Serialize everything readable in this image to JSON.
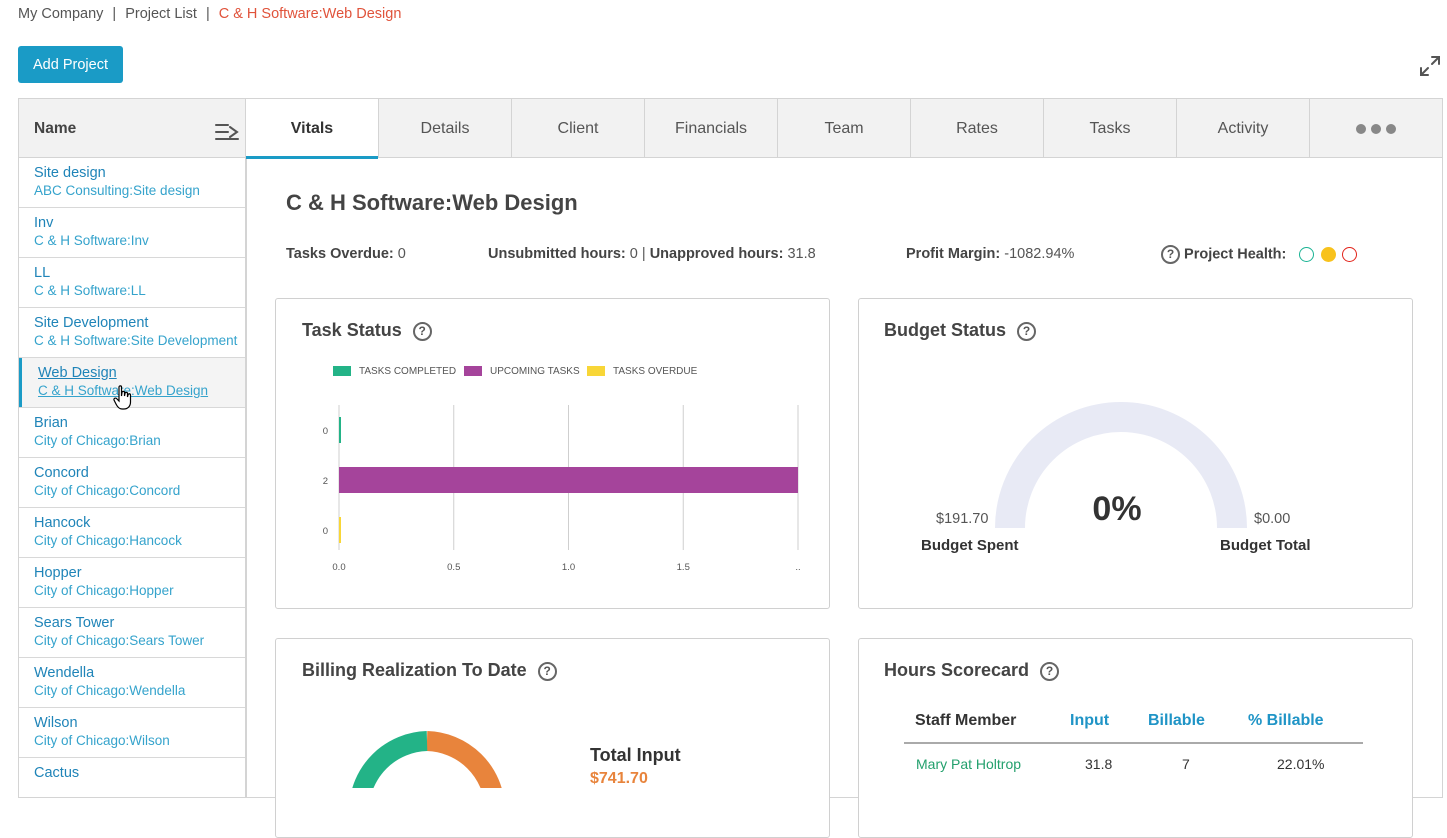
{
  "breadcrumb": {
    "items": [
      "My Company",
      "Project List"
    ],
    "separator": "|",
    "current": "C & H Software:Web Design"
  },
  "toolbar": {
    "add_project_label": "Add Project",
    "expand_icon": "expand-arrows-icon"
  },
  "sidebar": {
    "header": "Name",
    "sort_icon": "sort-lines-icon",
    "projects": [
      {
        "name": "Site design",
        "sub": "ABC Consulting:Site design"
      },
      {
        "name": "Inv",
        "sub": "C & H Software:Inv"
      },
      {
        "name": "LL",
        "sub": "C & H Software:LL"
      },
      {
        "name": "Site Development",
        "sub": "C & H Software:Site Development"
      },
      {
        "name": "Web Design",
        "sub": "C & H Software:Web Design"
      },
      {
        "name": "Brian",
        "sub": "City of Chicago:Brian"
      },
      {
        "name": "Concord",
        "sub": "City of Chicago:Concord"
      },
      {
        "name": "Hancock",
        "sub": "City of Chicago:Hancock"
      },
      {
        "name": "Hopper",
        "sub": "City of Chicago:Hopper"
      },
      {
        "name": "Sears Tower",
        "sub": "City of Chicago:Sears Tower"
      },
      {
        "name": "Wendella",
        "sub": "City of Chicago:Wendella"
      },
      {
        "name": "Wilson",
        "sub": "City of Chicago:Wilson"
      },
      {
        "name": "Cactus",
        "sub": ""
      }
    ],
    "active_index": 4
  },
  "tabs": [
    "Vitals",
    "Details",
    "Client",
    "Financials",
    "Team",
    "Rates",
    "Tasks",
    "Activity"
  ],
  "active_tab": "Vitals",
  "vitals": {
    "title": "C & H Software:Web Design",
    "tasks_overdue_label": "Tasks Overdue:",
    "tasks_overdue_value": "0",
    "unsubmitted_label": "Unsubmitted hours:",
    "unsubmitted_value": "0",
    "stat_separator": "|",
    "unapproved_label": "Unapproved hours:",
    "unapproved_value": "31.8",
    "profit_margin_label": "Profit Margin:",
    "profit_margin_value": "-1082.94%",
    "health_label": "Project Health:",
    "health_colors": [
      "#1ab394",
      "#f8c21d",
      "#e2231a"
    ],
    "help_icon": "question-circle-icon"
  },
  "task_status": {
    "title": "Task Status",
    "chart_data": {
      "type": "bar",
      "orientation": "horizontal",
      "categories": [
        "0",
        "2",
        "0"
      ],
      "series": [
        {
          "name": "TASKS COMPLETED",
          "values": [
            0,
            0,
            0
          ],
          "color": "#23b387"
        },
        {
          "name": "UPCOMING TASKS",
          "values": [
            0,
            2,
            0
          ],
          "color": "#a5449b"
        },
        {
          "name": "TASKS OVERDUE",
          "values": [
            0,
            0,
            0
          ],
          "color": "#f8d637"
        }
      ],
      "bar_values": [
        0,
        2,
        0
      ],
      "bar_colors": [
        "#23b387",
        "#a5449b",
        "#f8d637"
      ],
      "x_ticks": [
        "0.0",
        "0.5",
        "1.0",
        "1.5",
        ".."
      ],
      "xlim": [
        0,
        2
      ],
      "grid": true,
      "legend_position": "top"
    }
  },
  "budget_status": {
    "title": "Budget Status",
    "percent_label": "0%",
    "percent": 0,
    "spent_value": "$191.70",
    "spent_label": "Budget Spent",
    "total_value": "$0.00",
    "total_label": "Budget Total",
    "gauge_color": "#e8eaf5"
  },
  "billing": {
    "title": "Billing Realization To Date",
    "total_input_label": "Total Input",
    "total_input_value": "$741.70",
    "donut_colors": [
      "#e8843c",
      "#23b387"
    ]
  },
  "hours_scorecard": {
    "title": "Hours Scorecard",
    "columns": [
      "Staff Member",
      "Input",
      "Billable",
      "% Billable"
    ],
    "rows": [
      {
        "staff": "Mary Pat Holtrop",
        "input": "31.8",
        "billable": "7",
        "pct": "22.01%"
      }
    ]
  }
}
